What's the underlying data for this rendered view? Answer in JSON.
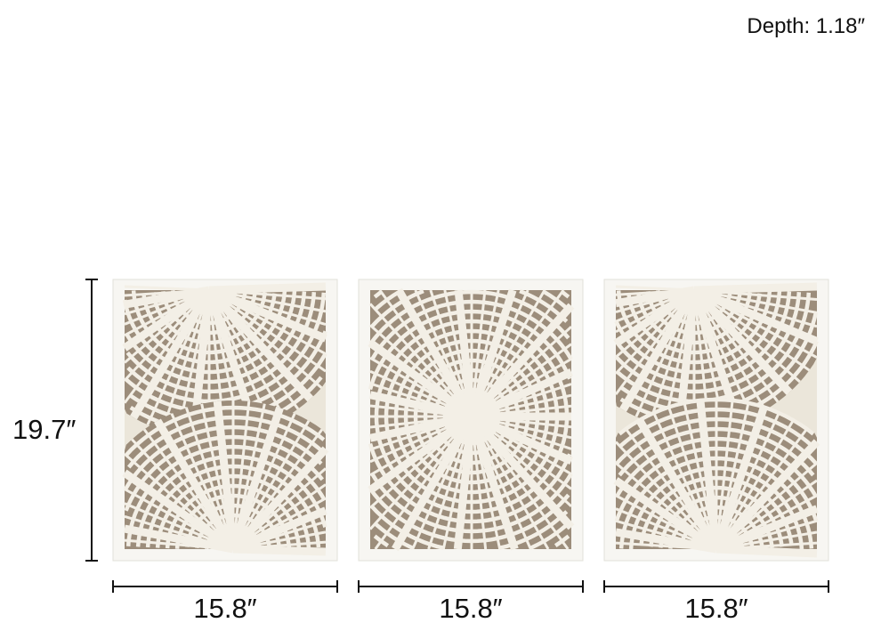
{
  "depth_label": "Depth: 1.18″",
  "height_label": "19.7″",
  "width_labels": [
    "15.8″",
    "15.8″",
    "15.8″"
  ],
  "colors": {
    "frame": "#f7f6f2",
    "mat": "#ebe6da",
    "pattern_bg": "#9c8d7b",
    "pattern_lines": "#f3efe6"
  },
  "panels": [
    "left-panel",
    "center-panel",
    "right-panel"
  ]
}
